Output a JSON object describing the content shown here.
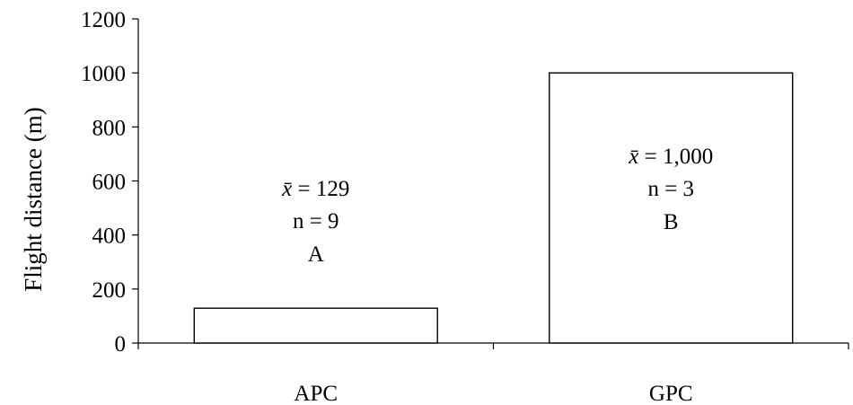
{
  "chart_data": {
    "type": "bar",
    "title": "",
    "xlabel": "",
    "ylabel": "Flight distance (m)",
    "ylim": [
      0,
      1200
    ],
    "yticks": [
      0,
      200,
      400,
      600,
      800,
      1000,
      1200
    ],
    "ytick_labels": [
      "0",
      "200",
      "400",
      "600",
      "800",
      "1000",
      "1200"
    ],
    "categories": [
      "APC",
      "GPC"
    ],
    "values": [
      129,
      1000
    ],
    "bar_fill": "#ffffff",
    "bar_stroke": "#000000",
    "grid": false,
    "legend": "none",
    "annotations": [
      {
        "mean_symbol": "x̄",
        "mean_text": " = 129",
        "n_text": "n = 9",
        "group": "A"
      },
      {
        "mean_symbol": "x̄",
        "mean_text": " = 1,000",
        "n_text": "n = 3",
        "group": "B"
      }
    ]
  }
}
